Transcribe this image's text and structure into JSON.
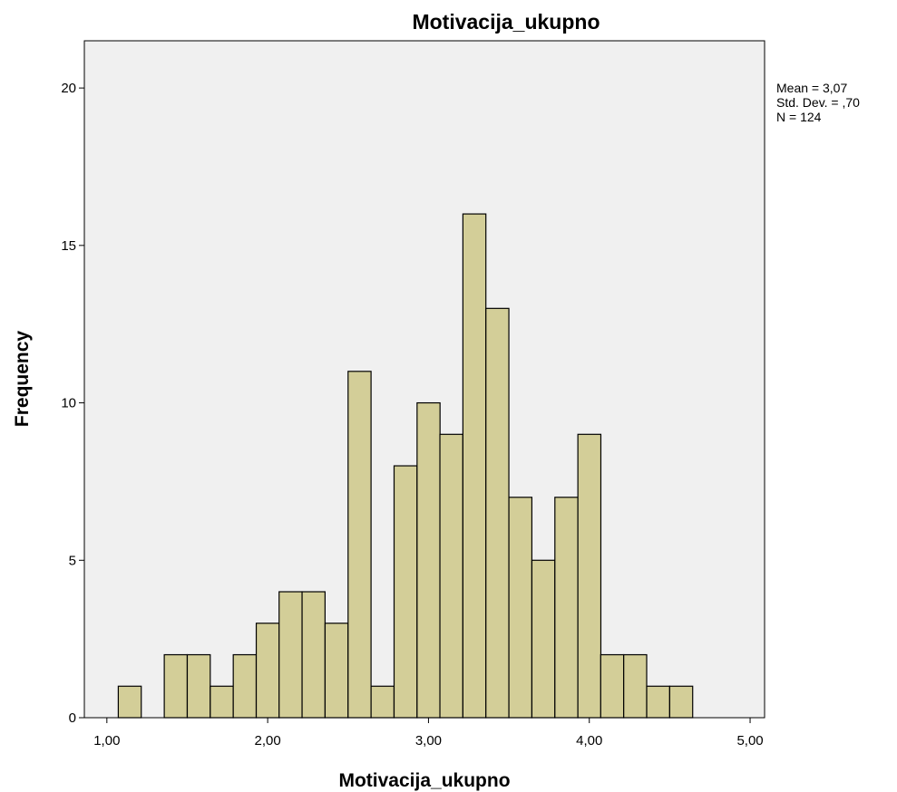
{
  "chart_data": {
    "type": "bar",
    "title": "Motivacija_ukupno",
    "xlabel": "Motivacija_ukupno",
    "ylabel": "Frequency",
    "xlim": [
      0.86,
      5.09
    ],
    "ylim": [
      0,
      21.5
    ],
    "x_ticks": [
      1,
      2,
      3,
      4,
      5
    ],
    "x_tick_labels": [
      "1,00",
      "2,00",
      "3,00",
      "4,00",
      "5,00"
    ],
    "y_ticks": [
      0,
      5,
      10,
      15,
      20
    ],
    "y_tick_labels": [
      "0",
      "5",
      "10",
      "15",
      "20"
    ],
    "grid": false,
    "bin_width": 0.142857,
    "bin_starts": [
      1.071,
      1.357,
      1.5,
      1.643,
      1.786,
      1.929,
      2.071,
      2.214,
      2.357,
      2.5,
      2.643,
      2.786,
      2.929,
      3.071,
      3.214,
      3.357,
      3.5,
      3.643,
      3.786,
      3.929,
      4.071,
      4.214,
      4.357,
      4.5
    ],
    "values": [
      1,
      2,
      2,
      1,
      2,
      3,
      4,
      4,
      3,
      11,
      1,
      8,
      10,
      9,
      16,
      13,
      7,
      5,
      7,
      9,
      2,
      2,
      1,
      1
    ],
    "stats": {
      "mean": "Mean = 3,07",
      "std": "Std. Dev. = ,70",
      "n": "N = 124"
    },
    "colors": {
      "bar_fill": "#d3ce98",
      "plot_background": "#f0f0f0"
    }
  }
}
